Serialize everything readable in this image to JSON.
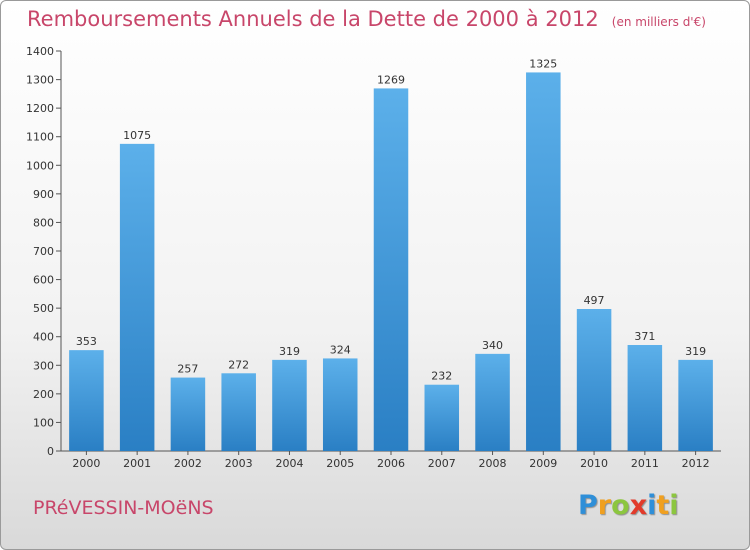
{
  "header": {
    "title": "Remboursements Annuels de la Dette de 2000 à 2012",
    "unit": "(en milliers d'€)"
  },
  "footer": {
    "commune": "PRéVESSIN-MOëNS",
    "logo_letters": [
      "P",
      "r",
      "o",
      "x",
      "i",
      "t",
      "i"
    ],
    "logo_colors": [
      "#2f8fd8",
      "#f0a020",
      "#8cc63f",
      "#e23a2a",
      "#2f8fd8",
      "#f0a020",
      "#8cc63f"
    ]
  },
  "colors": {
    "bar_top": "#5cb0ea",
    "bar_bottom": "#2a7fc4",
    "text": "#333333",
    "accent": "#c8466a"
  },
  "chart_data": {
    "type": "bar",
    "categories": [
      "2000",
      "2001",
      "2002",
      "2003",
      "2004",
      "2005",
      "2006",
      "2007",
      "2008",
      "2009",
      "2010",
      "2011",
      "2012"
    ],
    "values": [
      353,
      1075,
      257,
      272,
      319,
      324,
      1269,
      232,
      340,
      1325,
      497,
      371,
      319
    ],
    "ylim": [
      0,
      1400
    ],
    "yticks": [
      0,
      100,
      200,
      300,
      400,
      500,
      600,
      700,
      800,
      900,
      1000,
      1100,
      1200,
      1300,
      1400
    ],
    "grid": false
  }
}
